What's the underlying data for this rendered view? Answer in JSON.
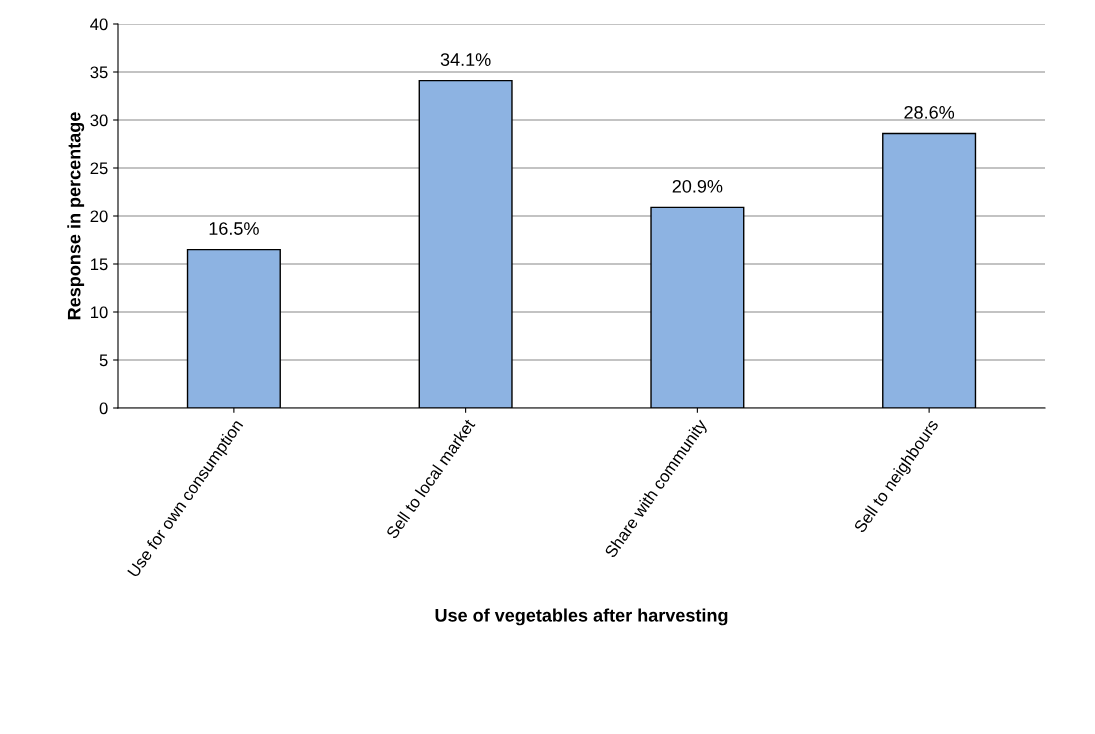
{
  "chart_data": {
    "type": "bar",
    "xlabel": "Use of vegetables after harvesting",
    "ylabel": "Response in percentage",
    "categories": [
      "Use for own consumption",
      "Sell to local market",
      "Share with community",
      "Sell to neighbours"
    ],
    "values": [
      16.5,
      34.1,
      20.9,
      28.6
    ],
    "value_labels": [
      "16.5%",
      "34.1%",
      "20.9%",
      "28.6%"
    ],
    "color": "#8db3e2",
    "ylim": [
      0,
      40
    ],
    "yticks": [
      0,
      5,
      10,
      15,
      20,
      25,
      30,
      35,
      40
    ],
    "grid": "y",
    "legend": false
  }
}
